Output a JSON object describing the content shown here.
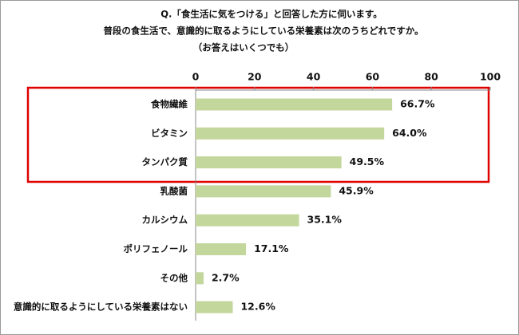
{
  "chart_data": {
    "type": "bar",
    "orientation": "horizontal",
    "title": [
      "Q.「食生活に気をつける」と回答した方に伺います。",
      "普段の食生活で、意識的に取るようにしている栄養素は次のうちどれですか。",
      "（お答えはいくつでも）"
    ],
    "categories": [
      "食物繊維",
      "ビタミン",
      "タンパク質",
      "乳酸菌",
      "カルシウム",
      "ポリフェノール",
      "その他",
      "意識的に取るようにしている栄養素はない"
    ],
    "values": [
      66.7,
      64.0,
      49.5,
      45.9,
      35.1,
      17.1,
      2.7,
      12.6
    ],
    "value_labels": [
      "66.7%",
      "64.0%",
      "49.5%",
      "45.9%",
      "35.1%",
      "17.1%",
      "2.7%",
      "12.6%"
    ],
    "color": "#c3d69b",
    "xlim": [
      0,
      100
    ],
    "xticks": [
      0,
      20,
      40,
      60,
      80,
      100
    ]
  }
}
